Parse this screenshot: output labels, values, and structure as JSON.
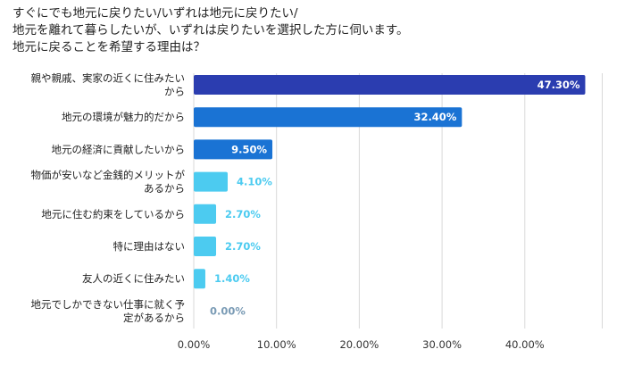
{
  "title_lines": [
    "すぐにでも地元に戻りたい/いずれは地元に戻りたい/",
    "地元を離れて暮らしたいが、いずれは戻りたいを選択した方に伺います。",
    "地元に戻ることを希望する理由は？"
  ],
  "colors": {
    "bar_dark": "#2b3db0",
    "bar_mid": "#1a73d4",
    "bar_light": "#4ccbf0",
    "label_light": "#4ccbf0",
    "label_zero": "#7a9bb5",
    "grid": "#d9d9d9"
  },
  "chart_data": {
    "type": "bar",
    "orientation": "horizontal",
    "title": "すぐにでも地元に戻りたい/いずれは地元に戻りたい/地元を離れて暮らしたいが、いずれは戻りたいを選択した方に伺います。地元に戻ることを希望する理由は？",
    "categories": [
      [
        "親や親戚、実家の近くに住みたい",
        "から"
      ],
      [
        "地元の環境が魅力的だから"
      ],
      [
        "地元の経済に貢献したいから"
      ],
      [
        "物価が安いなど金銭的メリットが",
        "あるから"
      ],
      [
        "地元に住む約束をしているから"
      ],
      [
        "特に理由はない"
      ],
      [
        "友人の近くに住みたい"
      ],
      [
        "地元でしかできない仕事に就く予",
        "定があるから"
      ]
    ],
    "values": [
      47.3,
      32.4,
      9.5,
      4.1,
      2.7,
      2.7,
      1.4,
      0.0
    ],
    "value_labels": [
      "47.30%",
      "32.40%",
      "9.50%",
      "4.10%",
      "2.70%",
      "2.70%",
      "1.40%",
      "0.00%"
    ],
    "xlim": [
      0,
      50
    ],
    "ticks": [
      0,
      10,
      20,
      30,
      40
    ],
    "tick_labels": [
      "0.00%",
      "10.00%",
      "20.00%",
      "30.00%",
      "40.00%"
    ],
    "grid": true,
    "legend": "none"
  }
}
